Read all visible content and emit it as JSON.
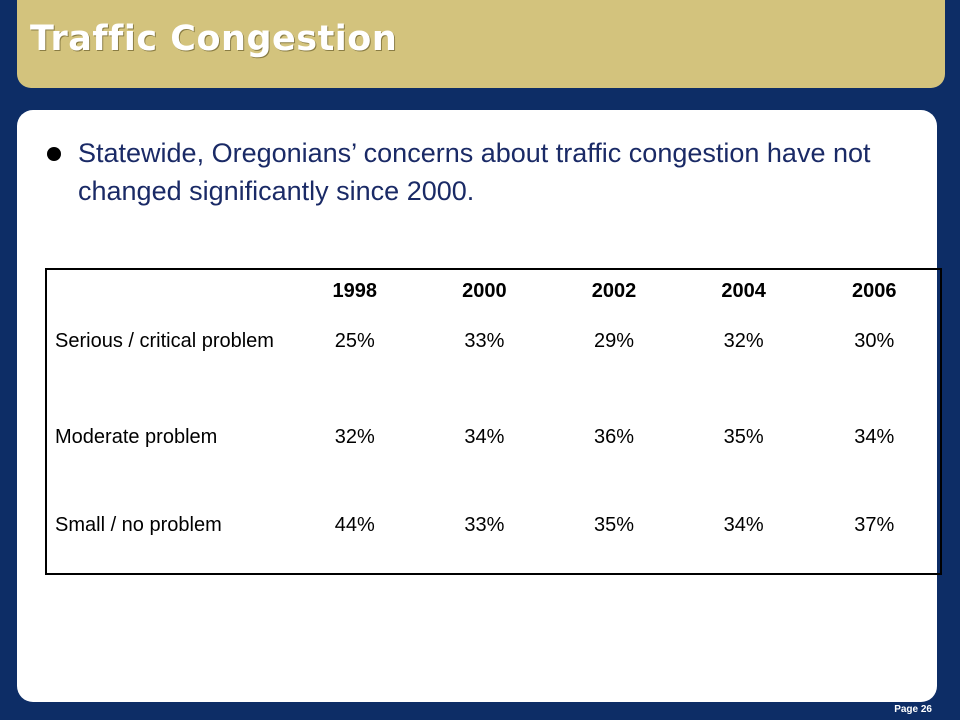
{
  "slide": {
    "title": "Traffic Congestion",
    "bullet": "Statewide, Oregonians’ concerns about traffic congestion have not changed significantly since 2000.",
    "page_label": "Page 26"
  },
  "table": {
    "headers": [
      "",
      "1998",
      "2000",
      "2002",
      "2004",
      "2006"
    ],
    "rows": [
      {
        "label": "Serious / critical problem",
        "values": [
          "25%",
          "33%",
          "29%",
          "32%",
          "30%"
        ]
      },
      {
        "label": "Moderate problem",
        "values": [
          "32%",
          "34%",
          "36%",
          "35%",
          "34%"
        ]
      },
      {
        "label": "Small / no problem",
        "values": [
          "44%",
          "33%",
          "35%",
          "34%",
          "37%"
        ]
      }
    ]
  },
  "colors": {
    "background": "#0d2d66",
    "title_bar": "#d3c37d",
    "panel": "#ffffff",
    "bullet_text": "#1a2a66"
  },
  "chart_data": {
    "type": "table",
    "columns": [
      "1998",
      "2000",
      "2002",
      "2004",
      "2006"
    ],
    "rows": [
      {
        "name": "Serious / critical problem",
        "values": [
          25,
          33,
          29,
          32,
          30
        ]
      },
      {
        "name": "Moderate problem",
        "values": [
          32,
          34,
          36,
          35,
          34
        ]
      },
      {
        "name": "Small / no problem",
        "values": [
          44,
          33,
          35,
          34,
          37
        ]
      }
    ],
    "unit": "%"
  }
}
